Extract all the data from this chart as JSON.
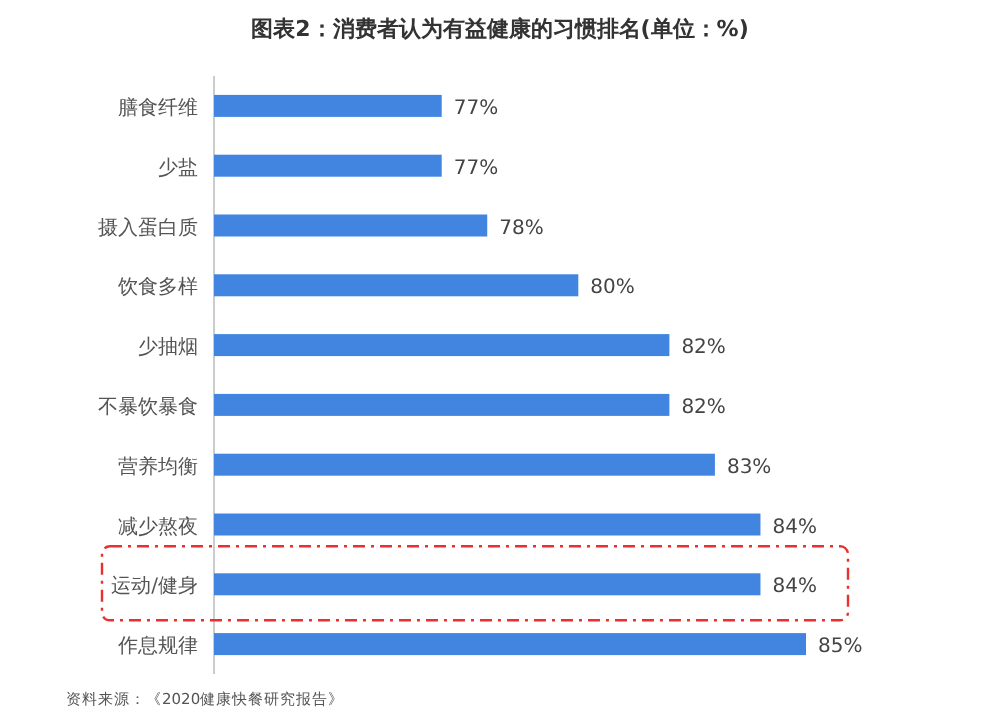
{
  "chart_data": {
    "type": "bar",
    "orientation": "horizontal",
    "title": "图表2：消费者认为有益健康的习惯排名(单位：%)",
    "categories": [
      "膳食纤维",
      "少盐",
      "摄入蛋白质",
      "饮食多样",
      "少抽烟",
      "不暴饮暴食",
      "营养均衡",
      "减少熬夜",
      "运动/健身",
      "作息规律"
    ],
    "values": [
      77,
      77,
      78,
      80,
      82,
      82,
      83,
      84,
      84,
      85
    ],
    "value_labels": [
      "77%",
      "77%",
      "78%",
      "80%",
      "82%",
      "82%",
      "83%",
      "84%",
      "84%",
      "85%"
    ],
    "color": "#4185e0",
    "xlim": [
      72,
      85
    ],
    "tick_labels": "y",
    "annotations": [
      "资料来源：《2020健康快餐研究报告》"
    ]
  }
}
